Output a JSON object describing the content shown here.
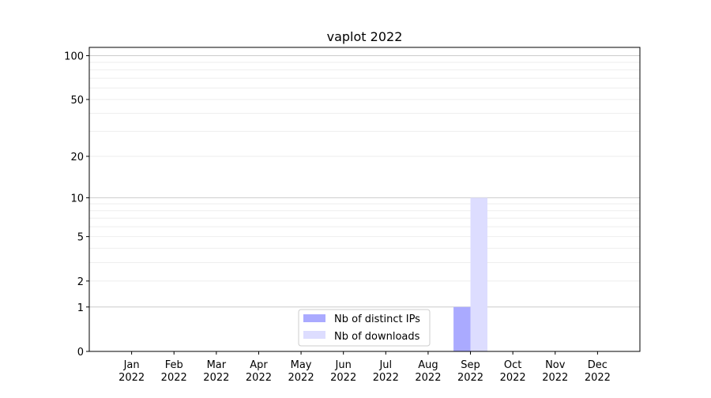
{
  "chart_data": {
    "type": "bar",
    "title": "vaplot 2022",
    "xlabel": "",
    "ylabel": "",
    "yscale": "log10(1+y)",
    "ylim": [
      0,
      114
    ],
    "yticks": [
      0,
      1,
      2,
      5,
      10,
      20,
      50,
      100
    ],
    "grid": {
      "major": [
        1,
        10,
        100
      ],
      "minor": true
    },
    "categories": [
      "Jan\n2022",
      "Feb\n2022",
      "Mar\n2022",
      "Apr\n2022",
      "May\n2022",
      "Jun\n2022",
      "Jul\n2022",
      "Aug\n2022",
      "Sep\n2022",
      "Oct\n2022",
      "Nov\n2022",
      "Dec\n2022"
    ],
    "series": [
      {
        "name": "Nb of distinct IPs",
        "color": "#aaaaff",
        "values": [
          0,
          0,
          0,
          0,
          0,
          0,
          0,
          0,
          1,
          0,
          0,
          0
        ]
      },
      {
        "name": "Nb of downloads",
        "color": "#ddddff",
        "values": [
          0,
          0,
          0,
          0,
          0,
          0,
          0,
          0,
          10,
          0,
          0,
          0
        ]
      }
    ],
    "legend_placement": "lower-center"
  }
}
